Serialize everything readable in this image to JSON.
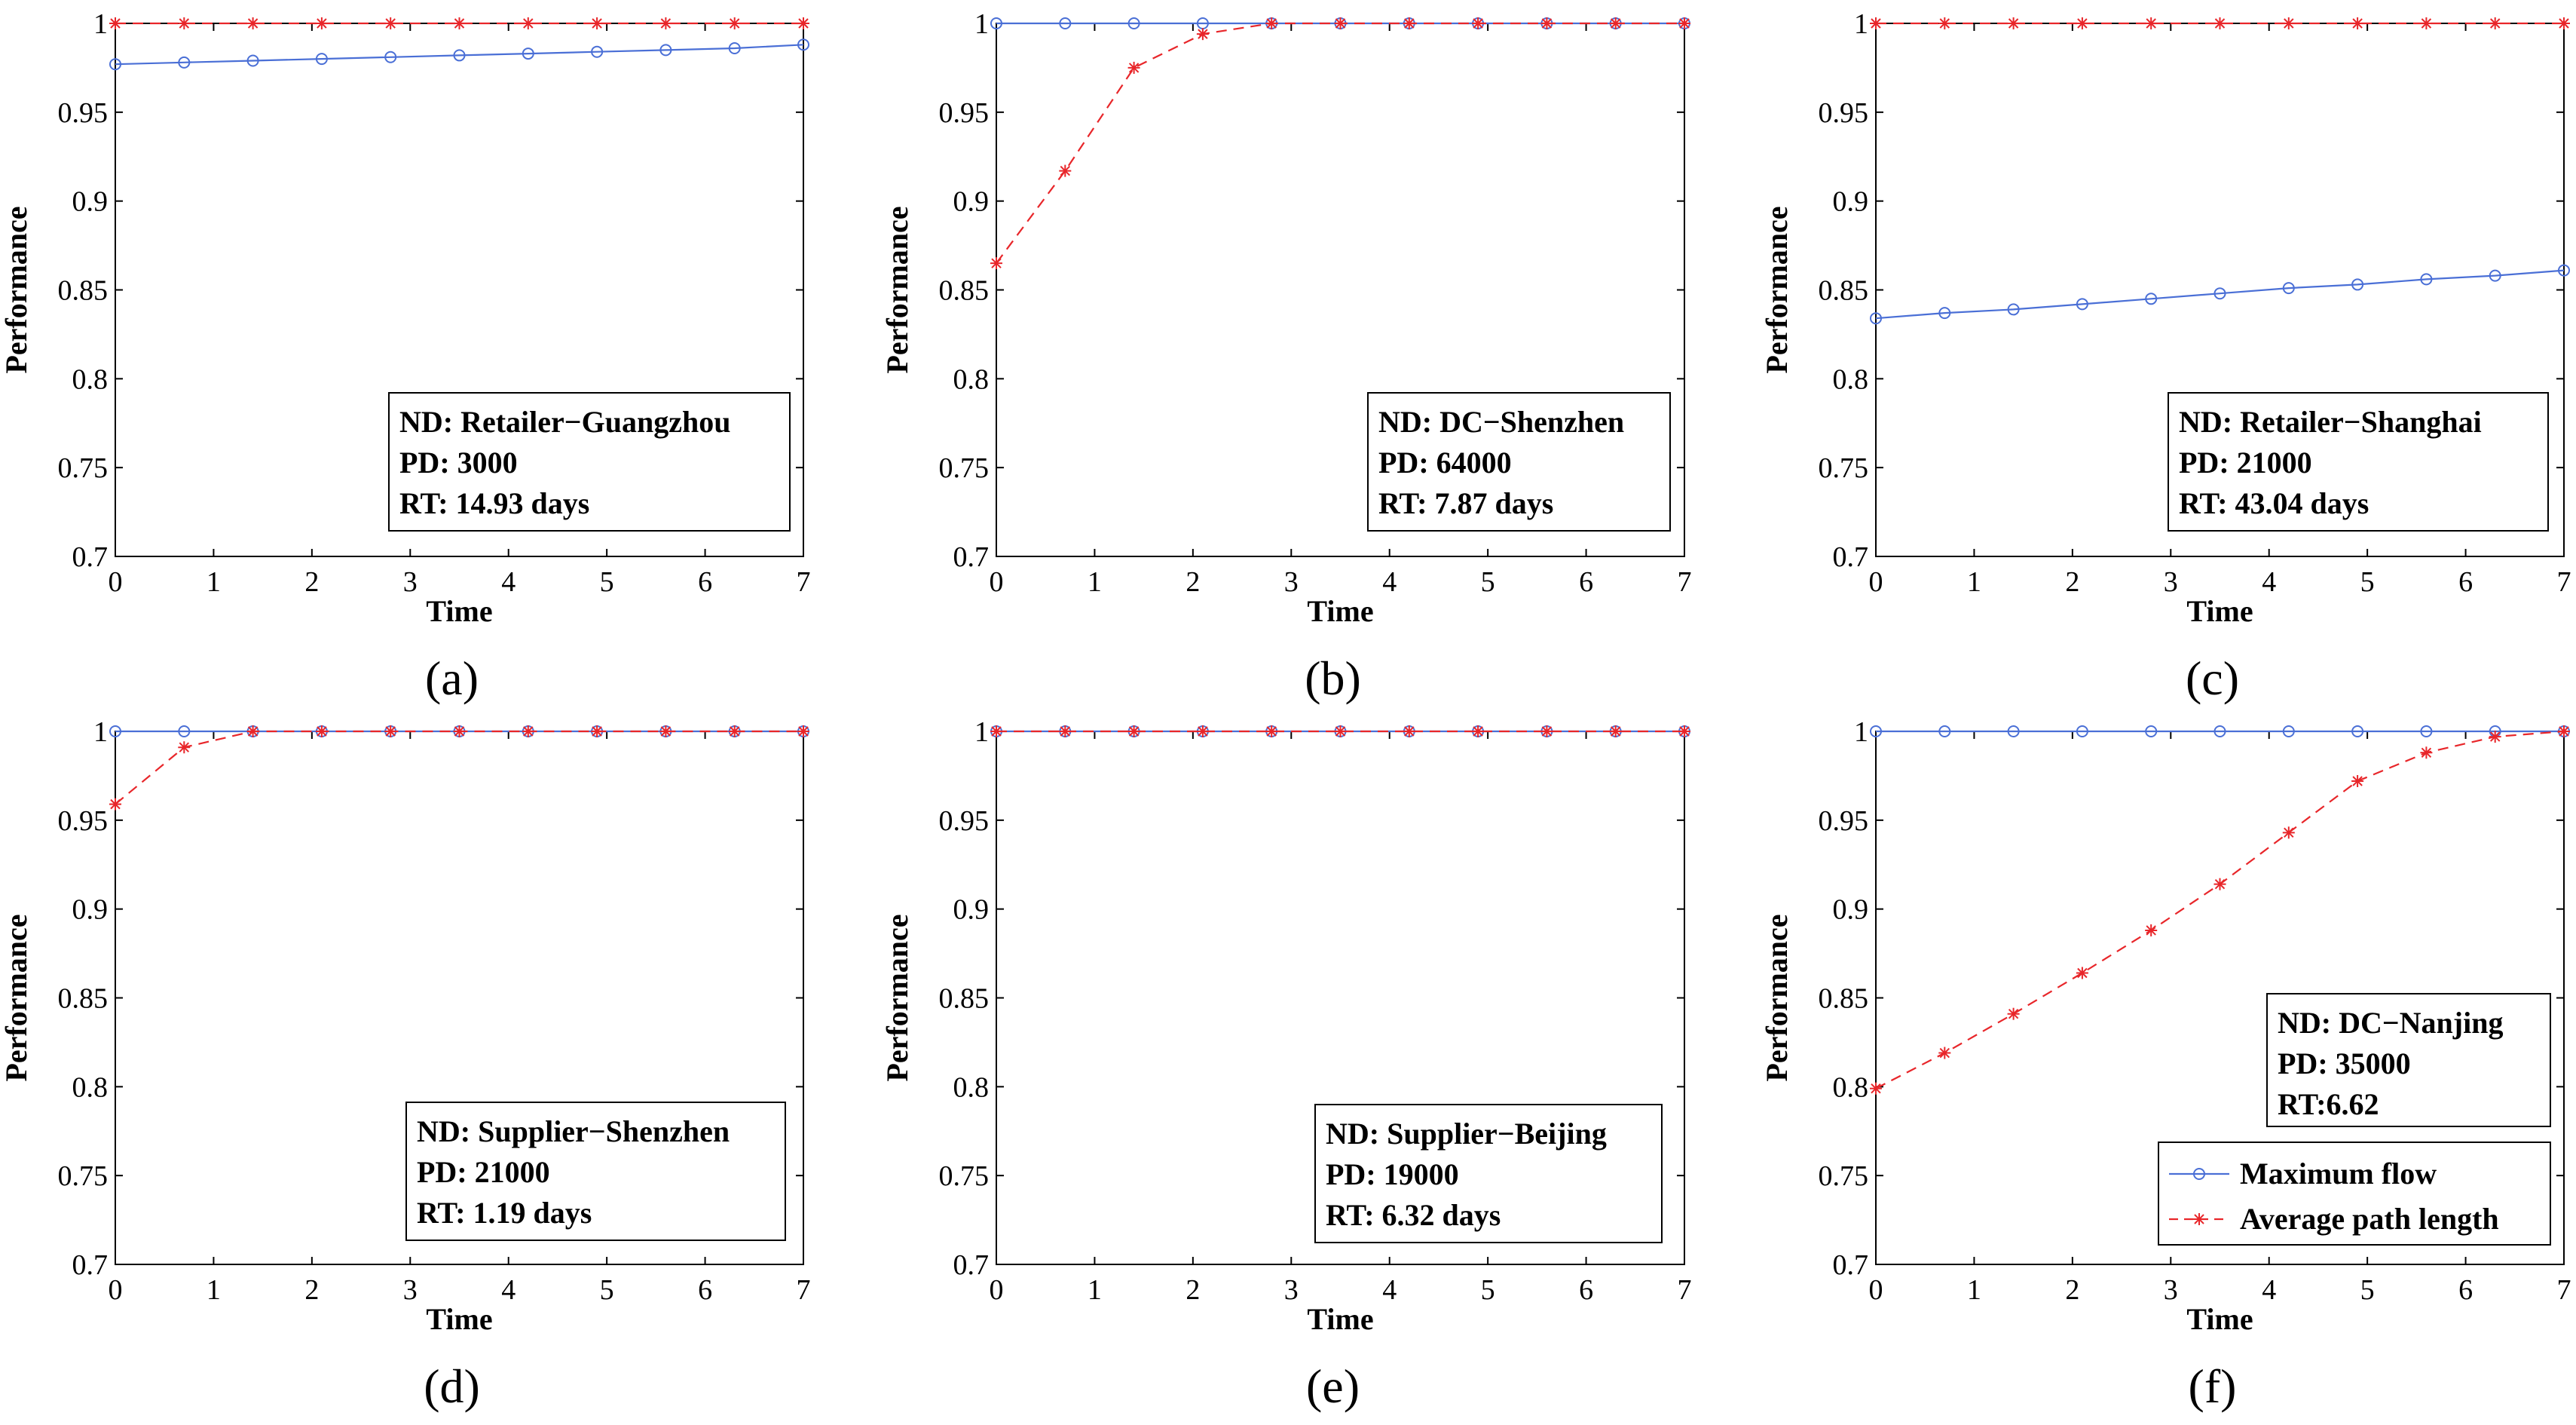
{
  "figure": {
    "colors": {
      "maximum_flow": "#4a6fd6",
      "average_path_length": "#e8262a"
    },
    "legend": {
      "maximum_flow": "Maximum flow",
      "average_path_length": "Average path length"
    },
    "x_ticks": [
      "0",
      "1",
      "2",
      "3",
      "4",
      "5",
      "6",
      "7"
    ],
    "y_ticks": [
      "0.7",
      "0.75",
      "0.8",
      "0.85",
      "0.9",
      "0.95",
      "1"
    ]
  },
  "chart_data": [
    {
      "type": "line",
      "caption": "(a)",
      "xlabel": "Time",
      "ylabel": "Performance",
      "xlim": [
        0,
        7
      ],
      "ylim": [
        0.7,
        1
      ],
      "annotation": [
        "ND: Retailer−Guangzhou",
        "PD: 3000",
        "RT: 14.93 days"
      ],
      "x": [
        0,
        0.7,
        1.4,
        2.1,
        2.8,
        3.5,
        4.2,
        4.9,
        5.6,
        6.3,
        7
      ],
      "series": [
        {
          "key": "maximum_flow",
          "values": [
            0.977,
            0.978,
            0.979,
            0.98,
            0.981,
            0.982,
            0.983,
            0.984,
            0.985,
            0.986,
            0.988
          ]
        },
        {
          "key": "average_path_length",
          "values": [
            1,
            1,
            1,
            1,
            1,
            1,
            1,
            1,
            1,
            1,
            1
          ]
        }
      ]
    },
    {
      "type": "line",
      "caption": "(b)",
      "xlabel": "Time",
      "ylabel": "Performance",
      "xlim": [
        0,
        7
      ],
      "ylim": [
        0.7,
        1
      ],
      "annotation": [
        "ND: DC−Shenzhen",
        "PD: 64000",
        "RT: 7.87 days"
      ],
      "x": [
        0,
        0.7,
        1.4,
        2.1,
        2.8,
        3.5,
        4.2,
        4.9,
        5.6,
        6.3,
        7
      ],
      "series": [
        {
          "key": "maximum_flow",
          "values": [
            1,
            1,
            1,
            1,
            1,
            1,
            1,
            1,
            1,
            1,
            1
          ]
        },
        {
          "key": "average_path_length",
          "values": [
            0.865,
            0.917,
            0.975,
            0.994,
            1,
            1,
            1,
            1,
            1,
            1,
            1
          ]
        }
      ]
    },
    {
      "type": "line",
      "caption": "(c)",
      "xlabel": "Time",
      "ylabel": "Performance",
      "xlim": [
        0,
        7
      ],
      "ylim": [
        0.7,
        1
      ],
      "annotation": [
        "ND: Retailer−Shanghai",
        "PD: 21000",
        "RT: 43.04 days"
      ],
      "x": [
        0,
        0.7,
        1.4,
        2.1,
        2.8,
        3.5,
        4.2,
        4.9,
        5.6,
        6.3,
        7
      ],
      "series": [
        {
          "key": "maximum_flow",
          "values": [
            0.834,
            0.837,
            0.839,
            0.842,
            0.845,
            0.848,
            0.851,
            0.853,
            0.856,
            0.858,
            0.861
          ]
        },
        {
          "key": "average_path_length",
          "values": [
            1,
            1,
            1,
            1,
            1,
            1,
            1,
            1,
            1,
            1,
            1
          ]
        }
      ]
    },
    {
      "type": "line",
      "caption": "(d)",
      "xlabel": "Time",
      "ylabel": "Performance",
      "xlim": [
        0,
        7
      ],
      "ylim": [
        0.7,
        1
      ],
      "annotation": [
        "ND: Supplier−Shenzhen",
        "PD: 21000",
        "RT: 1.19 days"
      ],
      "x": [
        0,
        0.7,
        1.4,
        2.1,
        2.8,
        3.5,
        4.2,
        4.9,
        5.6,
        6.3,
        7
      ],
      "series": [
        {
          "key": "maximum_flow",
          "values": [
            1,
            1,
            1,
            1,
            1,
            1,
            1,
            1,
            1,
            1,
            1
          ]
        },
        {
          "key": "average_path_length",
          "values": [
            0.959,
            0.991,
            1,
            1,
            1,
            1,
            1,
            1,
            1,
            1,
            1
          ]
        }
      ]
    },
    {
      "type": "line",
      "caption": "(e)",
      "xlabel": "Time",
      "ylabel": "Performance",
      "xlim": [
        0,
        7
      ],
      "ylim": [
        0.7,
        1
      ],
      "annotation": [
        "ND: Supplier−Beijing",
        "PD: 19000",
        "RT: 6.32 days"
      ],
      "x": [
        0,
        0.7,
        1.4,
        2.1,
        2.8,
        3.5,
        4.2,
        4.9,
        5.6,
        6.3,
        7
      ],
      "series": [
        {
          "key": "maximum_flow",
          "values": [
            1,
            1,
            1,
            1,
            1,
            1,
            1,
            1,
            1,
            1,
            1
          ]
        },
        {
          "key": "average_path_length",
          "values": [
            1,
            1,
            1,
            1,
            1,
            1,
            1,
            1,
            1,
            1,
            1
          ]
        }
      ]
    },
    {
      "type": "line",
      "caption": "(f)",
      "xlabel": "Time",
      "ylabel": "Performance",
      "xlim": [
        0,
        7
      ],
      "ylim": [
        0.7,
        1
      ],
      "annotation": [
        "ND: DC−Nanjing",
        "PD: 35000",
        "RT:6.62"
      ],
      "legend": [
        "Maximum flow",
        "Average path length"
      ],
      "legend_position": "bottom-right",
      "x": [
        0,
        0.7,
        1.4,
        2.1,
        2.8,
        3.5,
        4.2,
        4.9,
        5.6,
        6.3,
        7
      ],
      "series": [
        {
          "key": "maximum_flow",
          "values": [
            1,
            1,
            1,
            1,
            1,
            1,
            1,
            1,
            1,
            1,
            1
          ]
        },
        {
          "key": "average_path_length",
          "values": [
            0.799,
            0.819,
            0.841,
            0.864,
            0.888,
            0.914,
            0.943,
            0.972,
            0.988,
            0.997,
            1
          ]
        }
      ]
    }
  ]
}
